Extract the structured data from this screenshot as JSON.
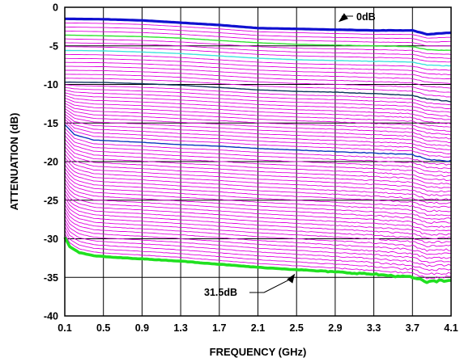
{
  "chart_data": {
    "type": "line",
    "title": "",
    "xlabel": "FREQUENCY (GHz)",
    "ylabel": "ATTENUATION (dB)",
    "xlim": [
      0.1,
      4.1
    ],
    "ylim": [
      -40,
      0
    ],
    "x_ticks": [
      0.1,
      0.5,
      0.9,
      1.3,
      1.7,
      2.1,
      2.5,
      2.9,
      3.3,
      3.7,
      4.1
    ],
    "x_tick_labels": [
      "0.1",
      "0.5",
      "0.9",
      "1.3",
      "1.7",
      "2.1",
      "2.5",
      "2.9",
      "3.3",
      "3.7",
      "4.1"
    ],
    "y_ticks": [
      0,
      -5,
      -10,
      -15,
      -20,
      -25,
      -30,
      -35,
      -40
    ],
    "y_tick_labels": [
      "0",
      "-5",
      "-10",
      "-15",
      "-20",
      "-25",
      "-30",
      "-35",
      "-40"
    ],
    "grid": true,
    "legend": "none",
    "attenuation_steps_dB": {
      "start": 0,
      "stop": 31.5,
      "step": 0.5
    },
    "curve_colors": {
      "default": "#e000e0",
      "0dB": "#1010d0",
      "2dB": "#30e030",
      "4dB": "#40e0e0",
      "8dB": "#103060",
      "16dB": "#1030c0",
      "31.5dB": "#20e020"
    },
    "series": [
      {
        "x": [
          0.1,
          0.5,
          0.9,
          1.3,
          1.7,
          2.1,
          2.5,
          2.9,
          3.3,
          3.7,
          3.85,
          4.1
        ],
        "values": [
          -1.5,
          -1.55,
          -1.7,
          -2.0,
          -2.3,
          -2.7,
          -2.8,
          -2.9,
          -3.0,
          -3.0,
          -3.5,
          -3.3
        ]
      },
      {
        "x": [
          0.1,
          0.5,
          0.9,
          1.3,
          1.7,
          2.1,
          2.5,
          2.9,
          3.3,
          3.7,
          3.85,
          4.1
        ],
        "values": [
          -3.6,
          -3.7,
          -3.8,
          -4.0,
          -4.3,
          -4.6,
          -4.8,
          -4.9,
          -5.0,
          -5.1,
          -5.5,
          -5.6
        ]
      },
      {
        "x": [
          0.1,
          0.5,
          0.9,
          1.3,
          1.7,
          2.1,
          2.5,
          2.9,
          3.3,
          3.7,
          3.85,
          4.1
        ],
        "values": [
          -5.6,
          -5.65,
          -5.8,
          -6.0,
          -6.3,
          -6.6,
          -6.8,
          -6.9,
          -7.0,
          -7.1,
          -7.5,
          -7.6
        ]
      },
      {
        "x": [
          0.1,
          0.5,
          0.9,
          1.3,
          1.7,
          2.1,
          2.5,
          2.9,
          3.3,
          3.7,
          3.85,
          4.1
        ],
        "values": [
          -9.7,
          -9.75,
          -9.9,
          -10.1,
          -10.4,
          -10.7,
          -10.9,
          -11.0,
          -11.2,
          -11.4,
          -11.9,
          -12.2
        ]
      },
      {
        "x": [
          0.1,
          0.2,
          0.4,
          0.9,
          1.3,
          1.7,
          2.1,
          2.5,
          2.9,
          3.3,
          3.7,
          3.85,
          4.1
        ],
        "values": [
          -15.2,
          -16.5,
          -17.2,
          -17.5,
          -17.8,
          -18.0,
          -18.3,
          -18.5,
          -18.7,
          -18.9,
          -19.1,
          -19.7,
          -19.9
        ]
      },
      {
        "x": [
          0.1,
          0.15,
          0.25,
          0.4,
          0.6,
          0.9,
          1.3,
          1.7,
          2.1,
          2.5,
          2.9,
          3.3,
          3.7,
          3.85,
          4.1
        ],
        "values": [
          -29.8,
          -31.0,
          -31.8,
          -32.2,
          -32.4,
          -32.6,
          -32.9,
          -33.3,
          -33.7,
          -34.0,
          -34.3,
          -34.6,
          -35.0,
          -35.6,
          -35.4
        ]
      }
    ],
    "annotations": [
      {
        "text": "0dB",
        "x": 2.9,
        "y": -1.8,
        "arrow_to": [
          2.9,
          -1.8
        ]
      },
      {
        "text": "31.5dB",
        "x": 2.4,
        "y": -34.2,
        "arrow_to": [
          2.4,
          -34.2
        ]
      }
    ]
  }
}
